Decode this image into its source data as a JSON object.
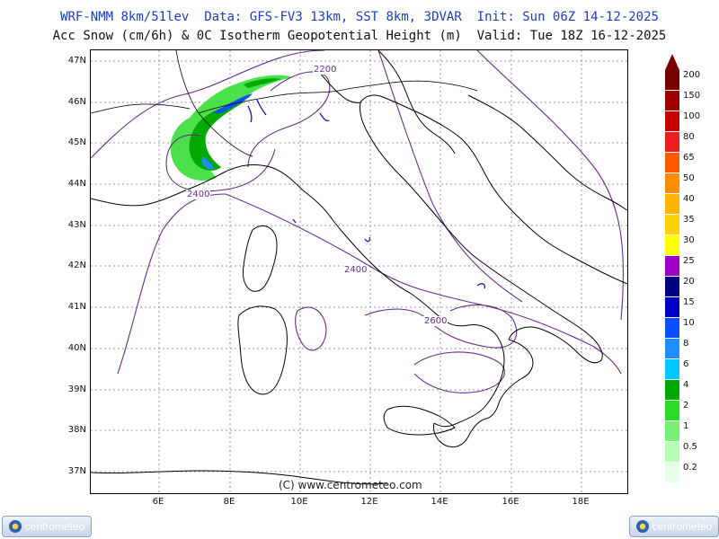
{
  "header": {
    "line1": "WRF-NMM 8km/51lev  Data: GFS-FV3 13km, SST 8km, 3DVAR  Init: Sun 06Z 14-12-2025",
    "line2": "Acc Snow (cm/6h) & 0C Isotherm Geopotential Height (m)  Valid: Tue 18Z 16-12-2025"
  },
  "map": {
    "lat_labels": [
      "47N",
      "46N",
      "45N",
      "44N",
      "43N",
      "42N",
      "41N",
      "40N",
      "39N",
      "38N",
      "37N"
    ],
    "lon_labels": [
      "6E",
      "8E",
      "10E",
      "12E",
      "14E",
      "16E",
      "18E"
    ],
    "contour_labels": [
      "2200",
      "2400",
      "2400",
      "2600"
    ],
    "copyright": "(C) www.centrometeo.com"
  },
  "colorbar": {
    "labels": [
      "200",
      "150",
      "100",
      "80",
      "65",
      "50",
      "40",
      "35",
      "30",
      "25",
      "20",
      "15",
      "10",
      "8",
      "6",
      "4",
      "2",
      "1",
      "0.5",
      "0.2"
    ],
    "colors": [
      "#7a0000",
      "#a00000",
      "#c80000",
      "#ee1e1e",
      "#ff5a00",
      "#ff8c00",
      "#ffb400",
      "#ffd200",
      "#ffff00",
      "#a000c8",
      "#000080",
      "#0000c8",
      "#0a50ff",
      "#1e8cff",
      "#00c8ff",
      "#00aa00",
      "#2adc2a",
      "#78f078",
      "#b4ffb4",
      "#e6ffe6"
    ]
  },
  "logos": {
    "left": "centrometeo",
    "right": "centrometeo"
  }
}
